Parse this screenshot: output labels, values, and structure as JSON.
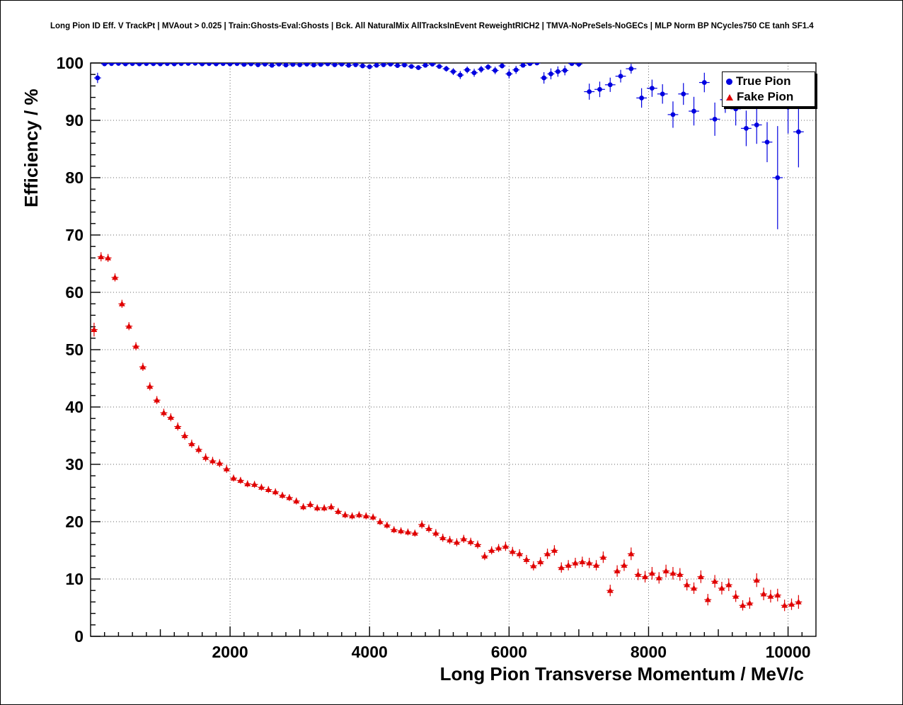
{
  "canvas": {
    "title": "Long Pion ID Eff. V TrackPt | MVAout > 0.025 | Train:Ghosts-Eval:Ghosts | Bck. All NaturalMix AllTracksInEvent ReweightRICH2 | TMVA-NoPreSels-NoGECs | MLP Norm BP NCycles750 CE tanh SF1.4"
  },
  "chart_data": {
    "type": "scatter",
    "title": "Long Pion ID Eff. V TrackPt",
    "xlabel": "Long Pion Transverse Momentum / MeV/c",
    "ylabel": "Efficiency / %",
    "xlim": [
      0,
      10400
    ],
    "ylim": [
      0,
      100
    ],
    "x_major_ticks": [
      2000,
      4000,
      6000,
      8000,
      10000
    ],
    "y_ticks": [
      0,
      10,
      20,
      30,
      40,
      50,
      60,
      70,
      80,
      90,
      100
    ],
    "grid": "dotted",
    "colors": {
      "true_pion": "#0000e0",
      "fake_pion": "#e00000",
      "grid": "#666666",
      "frame": "#000000",
      "background": "#ffffff"
    },
    "legend": {
      "position": "top-right",
      "entries": [
        {
          "label": "True Pion",
          "marker": "circle",
          "color": "#0000e0"
        },
        {
          "label": "Fake Pion",
          "marker": "triangle",
          "color": "#e00000"
        }
      ]
    },
    "series": [
      {
        "name": "True Pion",
        "marker": "circle",
        "color": "#0000e0",
        "xerr": 50,
        "points": [
          [
            100,
            97.4,
            0.9
          ],
          [
            200,
            99.85,
            0.15
          ],
          [
            300,
            99.9,
            0.1
          ],
          [
            400,
            99.92,
            0.1
          ],
          [
            500,
            99.85,
            0.12
          ],
          [
            600,
            99.9,
            0.1
          ],
          [
            700,
            99.85,
            0.12
          ],
          [
            800,
            99.9,
            0.1
          ],
          [
            900,
            99.88,
            0.1
          ],
          [
            1000,
            99.85,
            0.12
          ],
          [
            1100,
            99.9,
            0.1
          ],
          [
            1200,
            99.85,
            0.12
          ],
          [
            1300,
            99.9,
            0.1
          ],
          [
            1400,
            99.92,
            0.1
          ],
          [
            1500,
            99.95,
            0.08
          ],
          [
            1600,
            99.85,
            0.12
          ],
          [
            1700,
            99.9,
            0.1
          ],
          [
            1800,
            99.85,
            0.12
          ],
          [
            1900,
            99.9,
            0.1
          ],
          [
            2000,
            99.85,
            0.12
          ],
          [
            2100,
            99.9,
            0.12
          ],
          [
            2200,
            99.75,
            0.15
          ],
          [
            2300,
            99.85,
            0.13
          ],
          [
            2400,
            99.7,
            0.16
          ],
          [
            2500,
            99.8,
            0.15
          ],
          [
            2600,
            99.6,
            0.2
          ],
          [
            2700,
            99.8,
            0.15
          ],
          [
            2800,
            99.65,
            0.2
          ],
          [
            2900,
            99.75,
            0.17
          ],
          [
            3000,
            99.7,
            0.2
          ],
          [
            3100,
            99.8,
            0.16
          ],
          [
            3200,
            99.65,
            0.2
          ],
          [
            3300,
            99.75,
            0.18
          ],
          [
            3400,
            99.85,
            0.15
          ],
          [
            3500,
            99.7,
            0.2
          ],
          [
            3600,
            99.8,
            0.18
          ],
          [
            3700,
            99.6,
            0.25
          ],
          [
            3800,
            99.7,
            0.22
          ],
          [
            3900,
            99.5,
            0.3
          ],
          [
            4000,
            99.35,
            0.35
          ],
          [
            4100,
            99.6,
            0.3
          ],
          [
            4200,
            99.7,
            0.27
          ],
          [
            4300,
            99.8,
            0.22
          ],
          [
            4400,
            99.55,
            0.3
          ],
          [
            4500,
            99.65,
            0.3
          ],
          [
            4600,
            99.4,
            0.35
          ],
          [
            4700,
            99.2,
            0.4
          ],
          [
            4800,
            99.6,
            0.3
          ],
          [
            4900,
            99.8,
            0.25
          ],
          [
            5000,
            99.4,
            0.4
          ],
          [
            5100,
            99.0,
            0.5
          ],
          [
            5200,
            98.5,
            0.6
          ],
          [
            5300,
            97.9,
            0.7
          ],
          [
            5400,
            98.8,
            0.6
          ],
          [
            5500,
            98.3,
            0.7
          ],
          [
            5600,
            98.9,
            0.6
          ],
          [
            5700,
            99.3,
            0.5
          ],
          [
            5800,
            98.7,
            0.65
          ],
          [
            5900,
            99.5,
            0.45
          ],
          [
            6000,
            98.1,
            0.8
          ],
          [
            6100,
            98.8,
            0.7
          ],
          [
            6200,
            99.6,
            0.4
          ],
          [
            6300,
            99.9,
            0.3
          ],
          [
            6400,
            100,
            0.25
          ],
          [
            6500,
            97.4,
            1.0
          ],
          [
            6600,
            98.1,
            0.95
          ],
          [
            6700,
            98.5,
            0.9
          ],
          [
            6800,
            98.7,
            0.85
          ],
          [
            6900,
            99.9,
            0.4
          ],
          [
            7000,
            99.8,
            0.5
          ],
          [
            7150,
            95.0,
            1.4,
            75
          ],
          [
            7300,
            95.4,
            1.35,
            75
          ],
          [
            7450,
            96.2,
            1.25,
            75
          ],
          [
            7600,
            97.7,
            1.1,
            75
          ],
          [
            7750,
            99.0,
            0.85,
            75
          ],
          [
            7900,
            93.9,
            1.7,
            75
          ],
          [
            8050,
            95.6,
            1.5,
            75
          ],
          [
            8200,
            94.6,
            1.7,
            75
          ],
          [
            8350,
            91.0,
            2.3,
            75
          ],
          [
            8500,
            94.6,
            1.9,
            75
          ],
          [
            8650,
            91.6,
            2.5,
            75
          ],
          [
            8800,
            96.6,
            1.7,
            75
          ],
          [
            8950,
            90.2,
            2.9,
            75
          ],
          [
            9100,
            93.6,
            2.3,
            75
          ],
          [
            9250,
            92.0,
            2.9,
            75
          ],
          [
            9400,
            88.6,
            3.1,
            75
          ],
          [
            9550,
            89.2,
            3.3,
            75
          ],
          [
            9700,
            86.2,
            3.5,
            75
          ],
          [
            9850,
            80.0,
            9.0,
            75
          ],
          [
            10000,
            92.3,
            4.6,
            75
          ],
          [
            10150,
            88.0,
            6.2,
            75
          ]
        ]
      },
      {
        "name": "Fake Pion",
        "marker": "triangle",
        "color": "#e00000",
        "xerr": 50,
        "points": [
          [
            50,
            53.5,
            1.2
          ],
          [
            150,
            66.2,
            0.8
          ],
          [
            250,
            66.0,
            0.7
          ],
          [
            350,
            62.6,
            0.7
          ],
          [
            450,
            58.0,
            0.7
          ],
          [
            550,
            54.1,
            0.7
          ],
          [
            650,
            50.6,
            0.7
          ],
          [
            750,
            47.0,
            0.7
          ],
          [
            850,
            43.6,
            0.7
          ],
          [
            950,
            41.2,
            0.7
          ],
          [
            1050,
            39.0,
            0.7
          ],
          [
            1150,
            38.2,
            0.7
          ],
          [
            1250,
            36.6,
            0.7
          ],
          [
            1350,
            35.0,
            0.7
          ],
          [
            1450,
            33.6,
            0.7
          ],
          [
            1550,
            32.6,
            0.7
          ],
          [
            1650,
            31.2,
            0.7
          ],
          [
            1750,
            30.6,
            0.7
          ],
          [
            1850,
            30.2,
            0.7
          ],
          [
            1950,
            29.2,
            0.7
          ],
          [
            2050,
            27.6,
            0.6
          ],
          [
            2150,
            27.2,
            0.6
          ],
          [
            2250,
            26.6,
            0.6
          ],
          [
            2350,
            26.5,
            0.6
          ],
          [
            2450,
            26.0,
            0.6
          ],
          [
            2550,
            25.6,
            0.6
          ],
          [
            2650,
            25.2,
            0.6
          ],
          [
            2750,
            24.6,
            0.6
          ],
          [
            2850,
            24.2,
            0.6
          ],
          [
            2950,
            23.6,
            0.6
          ],
          [
            3050,
            22.6,
            0.6
          ],
          [
            3150,
            23.0,
            0.6
          ],
          [
            3250,
            22.4,
            0.6
          ],
          [
            3350,
            22.4,
            0.6
          ],
          [
            3450,
            22.6,
            0.6
          ],
          [
            3550,
            21.8,
            0.6
          ],
          [
            3650,
            21.2,
            0.6
          ],
          [
            3750,
            21.0,
            0.6
          ],
          [
            3850,
            21.2,
            0.6
          ],
          [
            3950,
            21.0,
            0.6
          ],
          [
            4050,
            20.8,
            0.6
          ],
          [
            4150,
            20.0,
            0.6
          ],
          [
            4250,
            19.4,
            0.6
          ],
          [
            4350,
            18.6,
            0.6
          ],
          [
            4450,
            18.4,
            0.6
          ],
          [
            4550,
            18.2,
            0.6
          ],
          [
            4650,
            18.0,
            0.6
          ],
          [
            4750,
            19.5,
            0.7
          ],
          [
            4850,
            18.8,
            0.7
          ],
          [
            4950,
            18.0,
            0.7
          ],
          [
            5050,
            17.2,
            0.7
          ],
          [
            5150,
            16.8,
            0.7
          ],
          [
            5250,
            16.4,
            0.7
          ],
          [
            5350,
            17.0,
            0.7
          ],
          [
            5450,
            16.5,
            0.7
          ],
          [
            5550,
            16.0,
            0.7
          ],
          [
            5650,
            14.0,
            0.7
          ],
          [
            5750,
            15.0,
            0.7
          ],
          [
            5850,
            15.4,
            0.7
          ],
          [
            5950,
            15.7,
            0.8
          ],
          [
            6050,
            14.8,
            0.8
          ],
          [
            6150,
            14.4,
            0.8
          ],
          [
            6250,
            13.4,
            0.8
          ],
          [
            6350,
            12.3,
            0.8
          ],
          [
            6450,
            13.0,
            0.8
          ],
          [
            6550,
            14.4,
            0.9
          ],
          [
            6650,
            15.0,
            0.9
          ],
          [
            6750,
            12.0,
            0.9
          ],
          [
            6850,
            12.4,
            0.9
          ],
          [
            6950,
            12.8,
            0.9
          ],
          [
            7050,
            13.0,
            0.9
          ],
          [
            7150,
            12.8,
            0.9
          ],
          [
            7250,
            12.4,
            0.9
          ],
          [
            7350,
            13.8,
            1.0
          ],
          [
            7450,
            8.0,
            1.0
          ],
          [
            7550,
            11.4,
            1.0
          ],
          [
            7650,
            12.4,
            1.0
          ],
          [
            7750,
            14.4,
            1.1
          ],
          [
            7850,
            10.8,
            1.0
          ],
          [
            7950,
            10.4,
            1.0
          ],
          [
            8050,
            11.0,
            1.1
          ],
          [
            8150,
            10.2,
            1.0
          ],
          [
            8250,
            11.4,
            1.1
          ],
          [
            8350,
            11.0,
            1.1
          ],
          [
            8450,
            10.8,
            1.1
          ],
          [
            8550,
            9.0,
            1.0
          ],
          [
            8650,
            8.4,
            1.0
          ],
          [
            8750,
            10.4,
            1.1
          ],
          [
            8850,
            6.4,
            1.0
          ],
          [
            8950,
            9.6,
            1.1
          ],
          [
            9050,
            8.4,
            1.1
          ],
          [
            9150,
            9.0,
            1.1
          ],
          [
            9250,
            7.0,
            1.0
          ],
          [
            9350,
            5.4,
            0.9
          ],
          [
            9450,
            5.8,
            1.0
          ],
          [
            9550,
            9.8,
            1.2
          ],
          [
            9650,
            7.4,
            1.1
          ],
          [
            9750,
            7.0,
            1.1
          ],
          [
            9850,
            7.2,
            1.1
          ],
          [
            9950,
            5.4,
            1.0
          ],
          [
            10050,
            5.6,
            1.0
          ],
          [
            10150,
            6.0,
            1.2
          ]
        ]
      }
    ]
  }
}
